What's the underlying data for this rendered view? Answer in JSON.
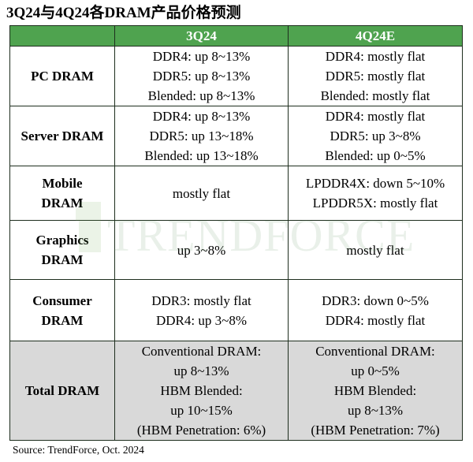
{
  "title": "3Q24与4Q24各DRAM产品价格预测",
  "header": {
    "col1": "3Q24",
    "col2": "4Q24E"
  },
  "rows": [
    {
      "label": [
        "PC DRAM"
      ],
      "q3": [
        "DDR4: up 8~13%",
        "DDR5: up 8~13%",
        "Blended: up 8~13%"
      ],
      "q4": [
        "DDR4: mostly flat",
        "DDR5: mostly flat",
        "Blended: mostly flat"
      ]
    },
    {
      "label": [
        "Server DRAM"
      ],
      "q3": [
        "DDR4: up 8~13%",
        "DDR5: up 13~18%",
        "Blended: up 13~18%"
      ],
      "q4": [
        "DDR4: mostly flat",
        "DDR5: up 3~8%",
        "Blended: up 0~5%"
      ]
    },
    {
      "label": [
        "Mobile",
        "DRAM"
      ],
      "q3": [
        "mostly flat"
      ],
      "q4": [
        "LPDDR4X: down 5~10%",
        "LPDDR5X: mostly flat"
      ]
    },
    {
      "label": [
        "Graphics",
        "DRAM"
      ],
      "q3": [
        "up 3~8%"
      ],
      "q4": [
        "mostly flat"
      ]
    },
    {
      "label": [
        "Consumer",
        "DRAM"
      ],
      "q3": [
        "DDR3: mostly flat",
        "DDR4: up 3~8%"
      ],
      "q4": [
        "DDR3: down 0~5%",
        "DDR4: mostly flat"
      ]
    },
    {
      "label": [
        "Total DRAM"
      ],
      "q3": [
        "Conventional DRAM:",
        "up 8~13%",
        "HBM Blended:",
        "up 10~15%",
        "(HBM Penetration: 6%)"
      ],
      "q4": [
        "Conventional DRAM:",
        "up 0~5%",
        "HBM Blended:",
        "up 8~13%",
        "(HBM Penetration: 7%)"
      ]
    }
  ],
  "watermark": "TRENDFORCE",
  "source": "Source: TrendForce, Oct. 2024",
  "colors": {
    "header_green": "#4fa34f",
    "total_gray": "#d9d9d9",
    "border": "#1e2e1e"
  }
}
